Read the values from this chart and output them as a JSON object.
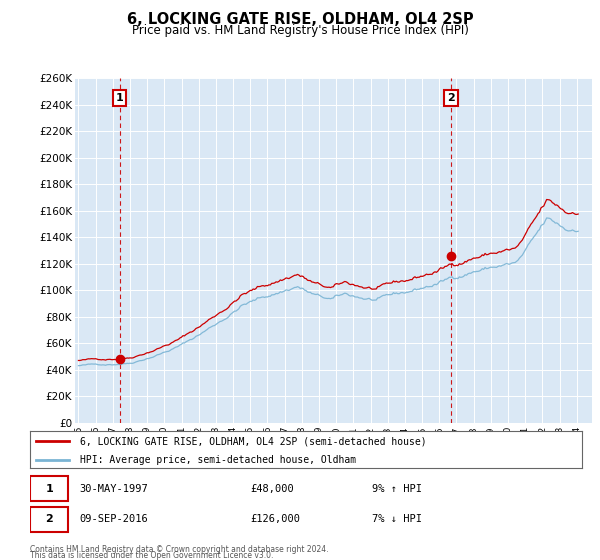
{
  "title": "6, LOCKING GATE RISE, OLDHAM, OL4 2SP",
  "subtitle": "Price paid vs. HM Land Registry's House Price Index (HPI)",
  "legend_line1": "6, LOCKING GATE RISE, OLDHAM, OL4 2SP (semi-detached house)",
  "legend_line2": "HPI: Average price, semi-detached house, Oldham",
  "footer1": "Contains HM Land Registry data © Crown copyright and database right 2024.",
  "footer2": "This data is licensed under the Open Government Licence v3.0.",
  "transaction1_date": "30-MAY-1997",
  "transaction1_price": "£48,000",
  "transaction1_hpi": "9% ↑ HPI",
  "transaction2_date": "09-SEP-2016",
  "transaction2_price": "£126,000",
  "transaction2_hpi": "7% ↓ HPI",
  "hpi_color": "#7ab4d4",
  "price_color": "#cc0000",
  "plot_bg_color": "#dae8f5",
  "ylim": [
    0,
    260000
  ],
  "ytick_values": [
    0,
    20000,
    40000,
    60000,
    80000,
    100000,
    120000,
    140000,
    160000,
    180000,
    200000,
    220000,
    240000,
    260000
  ],
  "ytick_labels": [
    "£0",
    "£20K",
    "£40K",
    "£60K",
    "£80K",
    "£100K",
    "£120K",
    "£140K",
    "£160K",
    "£180K",
    "£200K",
    "£220K",
    "£240K",
    "£260K"
  ],
  "transaction1_x": 1997.41,
  "transaction1_y": 48000,
  "transaction2_x": 2016.69,
  "transaction2_y": 126000,
  "xlim_left": 1994.8,
  "xlim_right": 2024.9
}
